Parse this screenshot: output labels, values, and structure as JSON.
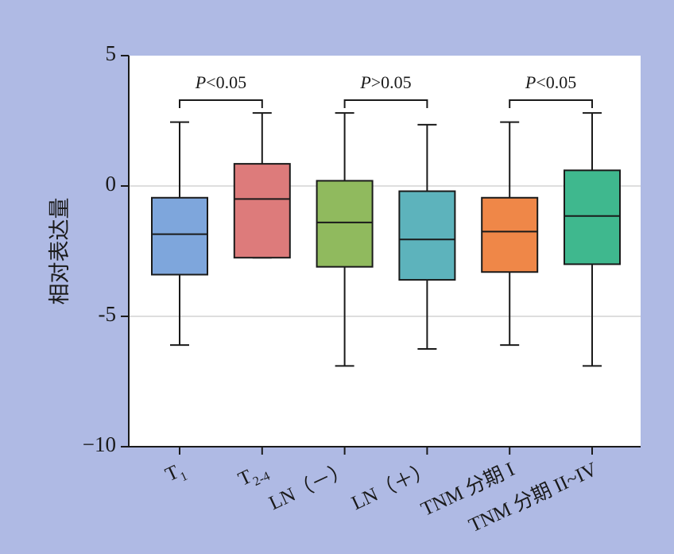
{
  "chart_data": {
    "type": "box",
    "ylabel": "相对表达量",
    "xlabel": "",
    "title": "",
    "ylim": [
      -10,
      5
    ],
    "yticks": [
      {
        "value": 5,
        "label": "5"
      },
      {
        "value": 0,
        "label": "0"
      },
      {
        "value": -5,
        "label": "-5"
      },
      {
        "value": -10,
        "label": "−10"
      }
    ],
    "grid": true,
    "categories": [
      {
        "label": "T",
        "sub": "1",
        "rest": ""
      },
      {
        "label": "T",
        "sub": "2-4",
        "rest": ""
      },
      {
        "label": "LN（－）",
        "sub": "",
        "rest": ""
      },
      {
        "label": "LN（＋）",
        "sub": "",
        "rest": ""
      },
      {
        "label": "TNM 分期 I",
        "sub": "",
        "rest": ""
      },
      {
        "label": "TNM 分期 II~IV",
        "sub": "",
        "rest": ""
      }
    ],
    "boxes": [
      {
        "min": -6.1,
        "q1": -3.4,
        "median": -1.85,
        "q3": -0.45,
        "max": 2.45,
        "color": "#7ea6dc"
      },
      {
        "min": -2.75,
        "q1": -2.75,
        "median": -0.5,
        "q3": 0.85,
        "max": 2.8,
        "color": "#dd7b7b"
      },
      {
        "min": -6.9,
        "q1": -3.1,
        "median": -1.4,
        "q3": 0.2,
        "max": 2.8,
        "color": "#90ba5e"
      },
      {
        "min": -6.25,
        "q1": -3.6,
        "median": -2.05,
        "q3": -0.2,
        "max": 2.35,
        "color": "#5db3bc"
      },
      {
        "min": -6.1,
        "q1": -3.3,
        "median": -1.75,
        "q3": -0.45,
        "max": 2.45,
        "color": "#ef8748"
      },
      {
        "min": -6.9,
        "q1": -3.0,
        "median": -1.15,
        "q3": 0.6,
        "max": 2.8,
        "color": "#3fb88e"
      }
    ],
    "annotations": [
      {
        "from": 0,
        "to": 1,
        "italic": "P",
        "text": "<0.05"
      },
      {
        "from": 2,
        "to": 3,
        "italic": "P",
        "text": ">0.05"
      },
      {
        "from": 4,
        "to": 5,
        "italic": "P",
        "text": "<0.05"
      }
    ]
  }
}
